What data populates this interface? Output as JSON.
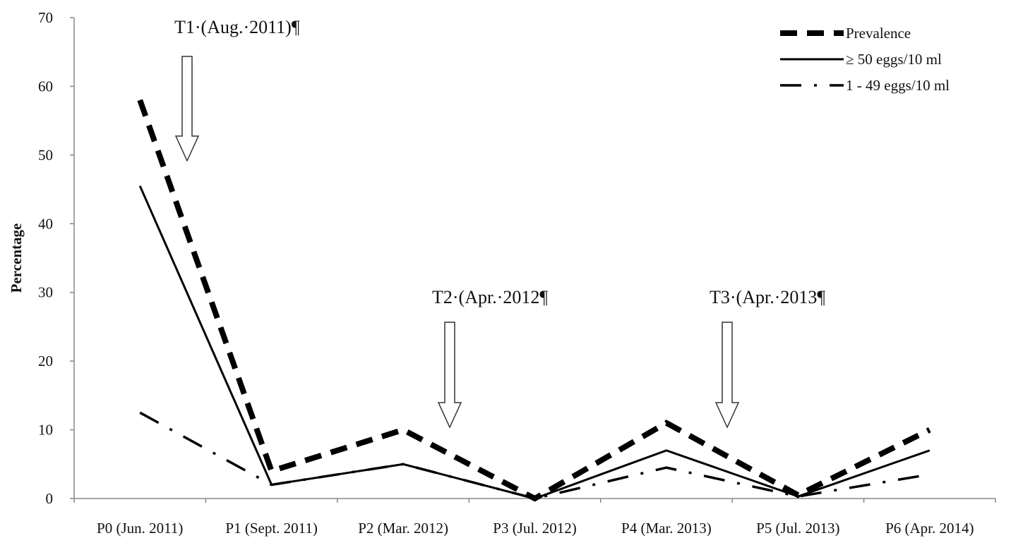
{
  "chart_data": {
    "type": "line",
    "title": "",
    "xlabel": "",
    "ylabel": "Percentage",
    "ylim": [
      0,
      70
    ],
    "yticks": [
      0,
      10,
      20,
      30,
      40,
      50,
      60,
      70
    ],
    "grid": false,
    "legend_position": "top-right",
    "categories": [
      "P0 (Jun. 2011)",
      "P1 (Sept. 2011)",
      "P2 (Mar. 2012)",
      "P3 (Jul. 2012)",
      "P4 (Mar. 2013)",
      "P5 (Jul. 2013)",
      "P6 (Apr. 2014)"
    ],
    "series": [
      {
        "name": "Prevalence",
        "style": "dashed-thick",
        "color": "#000000",
        "values": [
          58,
          4,
          10,
          0,
          11,
          0.5,
          10
        ]
      },
      {
        "name": "≥ 50 eggs/10 ml",
        "style": "solid",
        "color": "#000000",
        "values": [
          45.5,
          2,
          5,
          0,
          7,
          0.3,
          7
        ]
      },
      {
        "name": "1 - 49 eggs/10 ml",
        "style": "dash-dot",
        "color": "#000000",
        "values": [
          12.5,
          2,
          5,
          0,
          4.5,
          0.3,
          3.5
        ]
      }
    ],
    "annotations": [
      {
        "label": "T1·(Aug.·2011)¶",
        "between": [
          0,
          1
        ]
      },
      {
        "label": "T2·(Apr.·2012¶",
        "between": [
          2,
          3
        ]
      },
      {
        "label": "T3·(Apr.·2013¶",
        "between": [
          4,
          5
        ]
      }
    ]
  }
}
